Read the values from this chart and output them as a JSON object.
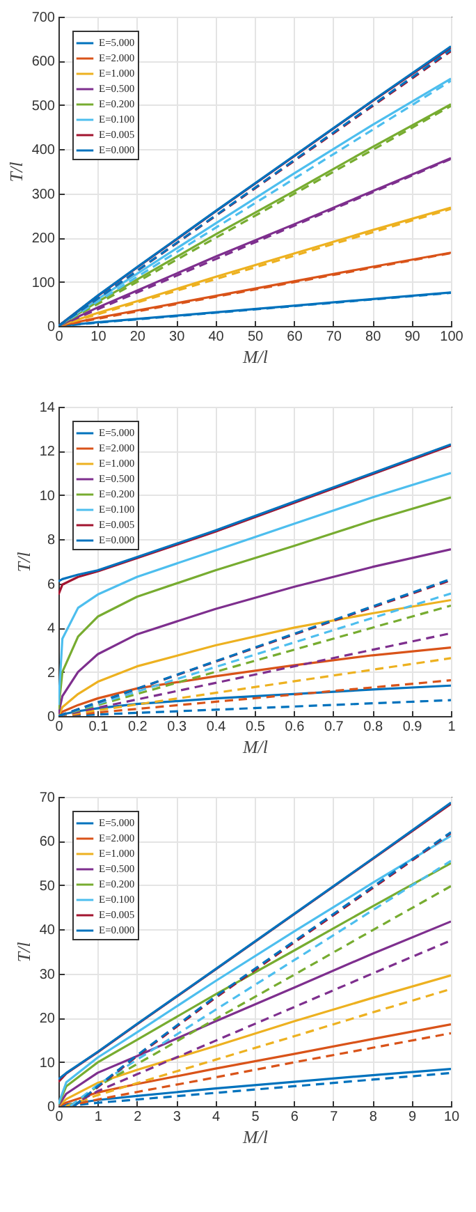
{
  "chart_data": [
    {
      "type": "line",
      "xlabel": "M/l",
      "ylabel": "T/l",
      "xlim": [
        0,
        100
      ],
      "xticks": [
        0,
        10,
        20,
        30,
        40,
        50,
        60,
        70,
        80,
        90,
        100
      ],
      "ylim": [
        0,
        700
      ],
      "yticks": [
        0,
        100,
        200,
        300,
        400,
        500,
        600,
        700
      ],
      "grid": true,
      "legend": "top left",
      "series": [
        {
          "name": "E=5.000",
          "color": "#0072bd",
          "x": [
            0,
            10,
            20,
            40,
            60,
            80,
            100
          ],
          "values": [
            0,
            8.4,
            16,
            31,
            46,
            61,
            76
          ]
        },
        {
          "name": "E=2.000",
          "color": "#d95319",
          "x": [
            0,
            10,
            20,
            40,
            60,
            80,
            100
          ],
          "values": [
            0,
            18.5,
            35,
            68,
            101,
            134,
            166
          ]
        },
        {
          "name": "E=1.000",
          "color": "#edb120",
          "x": [
            0,
            10,
            20,
            40,
            60,
            80,
            100
          ],
          "values": [
            0,
            29.6,
            56,
            111,
            164,
            217,
            268
          ]
        },
        {
          "name": "E=0.500",
          "color": "#7e2f8e",
          "x": [
            0,
            10,
            20,
            40,
            60,
            80,
            100
          ],
          "values": [
            0,
            42,
            80,
            157,
            230,
            305,
            380
          ]
        },
        {
          "name": "E=0.200",
          "color": "#77ac30",
          "x": [
            0,
            10,
            20,
            40,
            60,
            80,
            100
          ],
          "values": [
            0,
            55,
            105,
            207,
            305,
            405,
            502
          ]
        },
        {
          "name": "E=0.100",
          "color": "#4dbeee",
          "x": [
            0,
            10,
            20,
            40,
            60,
            80,
            100
          ],
          "values": [
            0,
            61,
            118,
            232,
            345,
            455,
            560
          ]
        },
        {
          "name": "E=0.005",
          "color": "#a2142f",
          "x": [
            0,
            10,
            20,
            40,
            60,
            80,
            100
          ],
          "values": [
            0,
            68,
            132,
            259,
            384,
            509,
            630
          ]
        },
        {
          "name": "E=0.000",
          "color": "#0072bd",
          "x": [
            0,
            10,
            20,
            40,
            60,
            80,
            100
          ],
          "values": [
            0,
            69,
            133,
            260,
            385,
            510,
            633
          ]
        },
        {
          "color": "#0072bd",
          "line_style": "dashed",
          "x": [
            0,
            100
          ],
          "values": [
            0,
            75
          ]
        },
        {
          "color": "#d95319",
          "line_style": "dashed",
          "x": [
            0,
            100
          ],
          "values": [
            0,
            165
          ]
        },
        {
          "color": "#edb120",
          "line_style": "dashed",
          "x": [
            0,
            100
          ],
          "values": [
            0,
            265
          ]
        },
        {
          "color": "#7e2f8e",
          "line_style": "dashed",
          "x": [
            0,
            100
          ],
          "values": [
            0,
            378
          ]
        },
        {
          "color": "#77ac30",
          "line_style": "dashed",
          "x": [
            0,
            100
          ],
          "values": [
            0,
            498
          ]
        },
        {
          "color": "#4dbeee",
          "line_style": "dashed",
          "x": [
            0,
            100
          ],
          "values": [
            0,
            555
          ]
        },
        {
          "color": "#a2142f",
          "line_style": "dashed",
          "x": [
            0,
            100
          ],
          "values": [
            0,
            622
          ]
        },
        {
          "color": "#0072bd",
          "line_style": "dashed",
          "x": [
            0,
            100
          ],
          "values": [
            0,
            625
          ]
        }
      ]
    },
    {
      "type": "line",
      "xlabel": "M/l",
      "ylabel": "T/l",
      "xlim": [
        0,
        1
      ],
      "xticks": [
        0,
        0.1,
        0.2,
        0.3,
        0.4,
        0.5,
        0.6,
        0.7,
        0.8,
        0.9,
        1
      ],
      "ylim": [
        0,
        14
      ],
      "yticks": [
        0,
        2,
        4,
        6,
        8,
        10,
        12,
        14
      ],
      "grid": true,
      "legend": "top left",
      "series": [
        {
          "name": "E=5.000",
          "color": "#0072bd",
          "x": [
            0,
            0.01,
            0.05,
            0.1,
            0.2,
            0.4,
            0.6,
            0.8,
            1
          ],
          "values": [
            0,
            0.08,
            0.22,
            0.35,
            0.55,
            0.8,
            1.0,
            1.2,
            1.38
          ]
        },
        {
          "name": "E=2.000",
          "color": "#d95319",
          "x": [
            0,
            0.01,
            0.05,
            0.1,
            0.2,
            0.4,
            0.6,
            0.8,
            1
          ],
          "values": [
            0,
            0.2,
            0.5,
            0.8,
            1.25,
            1.8,
            2.3,
            2.75,
            3.1
          ]
        },
        {
          "name": "E=1.000",
          "color": "#edb120",
          "x": [
            0,
            0.01,
            0.05,
            0.1,
            0.2,
            0.4,
            0.6,
            0.8,
            1
          ],
          "values": [
            0,
            0.4,
            1.0,
            1.55,
            2.25,
            3.2,
            4.0,
            4.65,
            5.25
          ]
        },
        {
          "name": "E=0.500",
          "color": "#7e2f8e",
          "x": [
            0,
            0.01,
            0.05,
            0.1,
            0.2,
            0.4,
            0.6,
            0.8,
            1
          ],
          "values": [
            0.1,
            0.9,
            2.0,
            2.8,
            3.7,
            4.85,
            5.85,
            6.75,
            7.55
          ]
        },
        {
          "name": "E=0.200",
          "color": "#77ac30",
          "x": [
            0,
            0.01,
            0.05,
            0.1,
            0.2,
            0.4,
            0.6,
            0.8,
            1
          ],
          "values": [
            0.3,
            2.0,
            3.6,
            4.5,
            5.4,
            6.6,
            7.7,
            8.85,
            9.9
          ]
        },
        {
          "name": "E=0.100",
          "color": "#4dbeee",
          "x": [
            0,
            0.01,
            0.05,
            0.1,
            0.2,
            0.4,
            0.6,
            0.8,
            1
          ],
          "values": [
            0.5,
            3.5,
            4.9,
            5.5,
            6.3,
            7.5,
            8.7,
            9.9,
            11.0
          ]
        },
        {
          "name": "E=0.005",
          "color": "#a2142f",
          "x": [
            0,
            0.01,
            0.05,
            0.1,
            0.2,
            0.4,
            0.6,
            0.8,
            1
          ],
          "values": [
            5.5,
            5.95,
            6.3,
            6.55,
            7.15,
            8.35,
            9.65,
            10.95,
            12.25
          ]
        },
        {
          "name": "E=0.000",
          "color": "#0072bd",
          "x": [
            0,
            0.01,
            0.05,
            0.1,
            0.2,
            0.4,
            0.6,
            0.8,
            1
          ],
          "values": [
            6.1,
            6.2,
            6.4,
            6.6,
            7.2,
            8.4,
            9.7,
            11.0,
            12.3
          ]
        },
        {
          "color": "#0072bd",
          "line_style": "dashed",
          "x": [
            0,
            1
          ],
          "values": [
            0,
            0.72
          ]
        },
        {
          "color": "#d95319",
          "line_style": "dashed",
          "x": [
            0,
            1
          ],
          "values": [
            0,
            1.62
          ]
        },
        {
          "color": "#edb120",
          "line_style": "dashed",
          "x": [
            0,
            1
          ],
          "values": [
            0,
            2.62
          ]
        },
        {
          "color": "#7e2f8e",
          "line_style": "dashed",
          "x": [
            0,
            1
          ],
          "values": [
            0,
            3.75
          ]
        },
        {
          "color": "#77ac30",
          "line_style": "dashed",
          "x": [
            0,
            1
          ],
          "values": [
            0,
            5.0
          ]
        },
        {
          "color": "#4dbeee",
          "line_style": "dashed",
          "x": [
            0,
            1
          ],
          "values": [
            0,
            5.55
          ]
        },
        {
          "color": "#a2142f",
          "line_style": "dashed",
          "x": [
            0,
            1
          ],
          "values": [
            0,
            6.15
          ]
        },
        {
          "color": "#0072bd",
          "line_style": "dashed",
          "x": [
            0,
            1
          ],
          "values": [
            0,
            6.2
          ]
        }
      ]
    },
    {
      "type": "line",
      "xlabel": "M/l",
      "ylabel": "T/l",
      "xlim": [
        0,
        10
      ],
      "xticks": [
        0,
        1,
        2,
        3,
        4,
        5,
        6,
        7,
        8,
        9,
        10
      ],
      "ylim": [
        0,
        70
      ],
      "yticks": [
        0,
        10,
        20,
        30,
        40,
        50,
        60,
        70
      ],
      "grid": true,
      "legend": "top left",
      "series": [
        {
          "name": "E=5.000",
          "color": "#0072bd",
          "x": [
            0,
            0.2,
            1,
            2,
            4,
            6,
            8,
            10
          ],
          "values": [
            0,
            0.35,
            1.38,
            2.3,
            4.0,
            5.5,
            7.0,
            8.4
          ]
        },
        {
          "name": "E=2.000",
          "color": "#d95319",
          "x": [
            0,
            0.2,
            1,
            2,
            4,
            6,
            8,
            10
          ],
          "values": [
            0,
            0.8,
            3.1,
            5.0,
            8.5,
            11.8,
            15.2,
            18.5
          ]
        },
        {
          "name": "E=1.000",
          "color": "#edb120",
          "x": [
            0,
            0.2,
            1,
            2,
            4,
            6,
            8,
            10
          ],
          "values": [
            0,
            1.6,
            5.25,
            8.2,
            13.6,
            19.2,
            24.5,
            29.6
          ]
        },
        {
          "name": "E=0.500",
          "color": "#7e2f8e",
          "x": [
            0,
            0.2,
            1,
            2,
            4,
            6,
            8,
            10
          ],
          "values": [
            0.1,
            2.8,
            7.55,
            11.3,
            19.2,
            26.8,
            34.5,
            41.8
          ]
        },
        {
          "name": "E=0.200",
          "color": "#77ac30",
          "x": [
            0,
            0.2,
            1,
            2,
            4,
            6,
            8,
            10
          ],
          "values": [
            0.3,
            4.5,
            9.9,
            15.0,
            25.3,
            35.2,
            45.2,
            55
          ]
        },
        {
          "name": "E=0.100",
          "color": "#4dbeee",
          "x": [
            0,
            0.2,
            1,
            2,
            4,
            6,
            8,
            10
          ],
          "values": [
            0.5,
            5.4,
            11.0,
            16.7,
            28.3,
            39.5,
            50.5,
            61.2
          ]
        },
        {
          "name": "E=0.005",
          "color": "#a2142f",
          "x": [
            0,
            0.2,
            1,
            2,
            4,
            6,
            8,
            10
          ],
          "values": [
            5.5,
            7.4,
            12.2,
            18.5,
            30.9,
            43.4,
            55.9,
            68.4
          ]
        },
        {
          "name": "E=0.000",
          "color": "#0072bd",
          "x": [
            0,
            0.2,
            1,
            2,
            4,
            6,
            8,
            10
          ],
          "values": [
            6.1,
            7.5,
            12.3,
            18.6,
            31,
            43.5,
            56,
            68.7
          ]
        },
        {
          "color": "#0072bd",
          "line_style": "dashed",
          "x": [
            0.2,
            1,
            2,
            4,
            6,
            8,
            10
          ],
          "values": [
            0,
            0.75,
            1.5,
            3.0,
            4.5,
            6.0,
            7.5
          ]
        },
        {
          "color": "#d95319",
          "line_style": "dashed",
          "x": [
            0.2,
            1,
            2,
            4,
            6,
            8,
            10
          ],
          "values": [
            0,
            1.5,
            3.2,
            6.5,
            9.9,
            13.2,
            16.5
          ]
        },
        {
          "color": "#edb120",
          "line_style": "dashed",
          "x": [
            0.2,
            1,
            2,
            4,
            6,
            8,
            10
          ],
          "values": [
            0,
            2.5,
            5.2,
            10.5,
            15.8,
            21.2,
            26.5
          ]
        },
        {
          "color": "#7e2f8e",
          "line_style": "dashed",
          "x": [
            0.3,
            1,
            2,
            4,
            6,
            8,
            10
          ],
          "values": [
            0,
            3.4,
            7.2,
            14.8,
            22.4,
            30,
            37.5
          ]
        },
        {
          "color": "#77ac30",
          "line_style": "dashed",
          "x": [
            0.3,
            1,
            2,
            4,
            6,
            8,
            10
          ],
          "values": [
            0,
            4.5,
            9.5,
            19.7,
            29.7,
            39.8,
            49.8
          ]
        },
        {
          "color": "#4dbeee",
          "line_style": "dashed",
          "x": [
            0.3,
            1,
            2,
            4,
            6,
            8,
            10
          ],
          "values": [
            0,
            4.8,
            10.5,
            21.8,
            33,
            44.3,
            55.5
          ]
        },
        {
          "color": "#a2142f",
          "line_style": "dashed",
          "x": [
            0.4,
            1,
            2,
            4,
            6,
            8,
            10
          ],
          "values": [
            0,
            4.3,
            11.3,
            24.5,
            37,
            49.3,
            61.8
          ]
        },
        {
          "color": "#0072bd",
          "line_style": "dashed",
          "x": [
            0.4,
            1,
            2,
            4,
            6,
            8,
            10
          ],
          "values": [
            0,
            4.5,
            11.5,
            24.8,
            37.3,
            49.6,
            62
          ]
        }
      ]
    }
  ]
}
